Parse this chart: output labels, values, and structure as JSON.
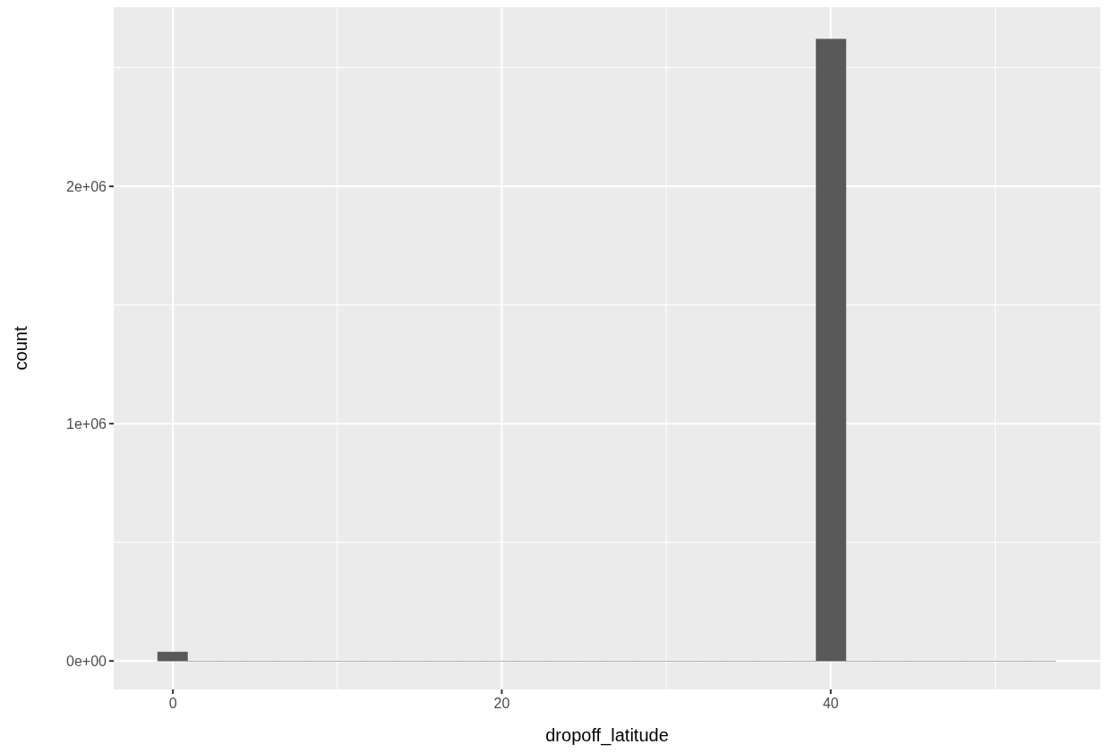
{
  "chart_data": {
    "type": "histogram",
    "xlabel": "dropoff_latitude",
    "ylabel": "count",
    "color": "#595959",
    "bins": [
      -0.93,
      0.89,
      2.71,
      4.53,
      6.35,
      8.17,
      9.99,
      11.81,
      13.63,
      15.45,
      17.27,
      19.09,
      20.91,
      22.73,
      24.55,
      26.37,
      28.19,
      30.01,
      31.83,
      33.65,
      35.47,
      37.29,
      39.11,
      40.93,
      42.75,
      44.57,
      46.39,
      48.21,
      50.03,
      51.85,
      53.67
    ],
    "values": [
      38000,
      0,
      0,
      0,
      0,
      0,
      0,
      0,
      0,
      0,
      0,
      0,
      0,
      0,
      0,
      0,
      0,
      0,
      0,
      0,
      0,
      0,
      2620000,
      0,
      0,
      0,
      0,
      0,
      0,
      0
    ],
    "xlim": [
      -3.6,
      56.4
    ],
    "xticks": [
      0,
      20,
      40
    ],
    "ylim": [
      -120000,
      2755000
    ],
    "yticks": [
      {
        "value": 0,
        "label": "0e+00"
      },
      {
        "value": 1000000,
        "label": "1e+06"
      },
      {
        "value": 2000000,
        "label": "2e+06"
      }
    ],
    "grid": true
  }
}
